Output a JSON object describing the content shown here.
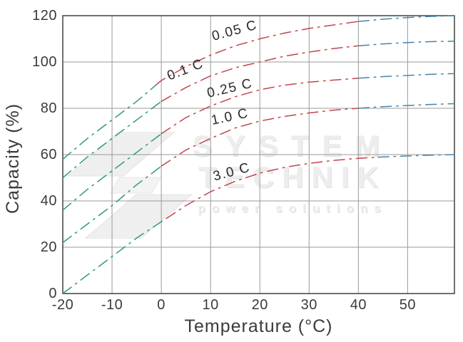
{
  "figure": {
    "watermark": {
      "line1": "SYSTEM",
      "line2": "TECHNIK",
      "line3": "power solutions"
    }
  },
  "chart_data": {
    "type": "line",
    "title": "",
    "xlabel": "Temperature (°C)",
    "ylabel": "Capacity (%)",
    "xlim": [
      -20,
      59.5
    ],
    "ylim": [
      0,
      120
    ],
    "x_tick_values": [
      -20,
      -10,
      0,
      10,
      20,
      30,
      40,
      50
    ],
    "x_tick_labels": [
      "-20",
      "-10",
      "0",
      "10",
      "20",
      "30",
      "40",
      "50"
    ],
    "y_tick_values": [
      0,
      20,
      40,
      60,
      80,
      100,
      120
    ],
    "y_tick_labels": [
      "0",
      "20",
      "40",
      "60",
      "80",
      "100",
      "120"
    ],
    "grid": true,
    "line_style": "dash-dot",
    "colors": {
      "cold_zone": "#2f9b77",
      "normal_zone": "#c2454e",
      "hot_zone": "#4684a8",
      "gridline": "#9a9a9a",
      "border": "#4d4d4d",
      "text": "#3b3b3b",
      "curve_label": "#2a2a2a"
    },
    "x": [
      -20,
      -15,
      -10,
      -5,
      0,
      5,
      10,
      15,
      20,
      25,
      30,
      35,
      40,
      45,
      50,
      55,
      59.5
    ],
    "series": [
      {
        "name": "0.05 C",
        "values": [
          58,
          67,
          75,
          83,
          92,
          98,
          103,
          107,
          110,
          112.5,
          114.5,
          116,
          117.5,
          118.5,
          119.2,
          119.7,
          120
        ],
        "zone_boundaries": [
          -1,
          40
        ],
        "label": {
          "text": "0.05 C",
          "x": 15.1,
          "y": 111.8,
          "rot": -15
        }
      },
      {
        "name": "0.1 C",
        "values": [
          50,
          59,
          67,
          75,
          83,
          89,
          94,
          97.5,
          100,
          102.5,
          104.3,
          105.8,
          107,
          107.8,
          108.4,
          108.8,
          109
        ],
        "zone_boundaries": [
          0,
          40
        ],
        "label": {
          "text": "0.1 C",
          "x": 5.2,
          "y": 95.0,
          "rot": -21
        }
      },
      {
        "name": "0.25 C",
        "values": [
          36,
          45,
          53,
          61,
          69,
          76,
          81,
          85,
          88,
          90,
          91.3,
          92.2,
          93,
          93.7,
          94.2,
          94.7,
          95
        ],
        "zone_boundaries": [
          0,
          40
        ],
        "label": {
          "text": "0.25 C",
          "x": 14.1,
          "y": 86.9,
          "rot": -13
        }
      },
      {
        "name": "1.0 C",
        "values": [
          22,
          30,
          38,
          47,
          55,
          62,
          67,
          71.5,
          74.5,
          76.5,
          78,
          79.2,
          80,
          80.7,
          81.2,
          81.7,
          82
        ],
        "zone_boundaries": [
          0,
          40
        ],
        "label": {
          "text": "1.0 C",
          "x": 14.1,
          "y": 74.6,
          "rot": -12
        }
      },
      {
        "name": "3.0 C",
        "values": [
          0,
          8,
          16,
          24,
          31,
          38,
          44,
          48.5,
          52,
          54.5,
          56.2,
          57.5,
          58.4,
          59,
          59.4,
          59.8,
          60
        ],
        "zone_boundaries": [
          1,
          44
        ],
        "label": {
          "text": "3.0 C",
          "x": 14.5,
          "y": 50.8,
          "rot": -15
        }
      }
    ]
  }
}
